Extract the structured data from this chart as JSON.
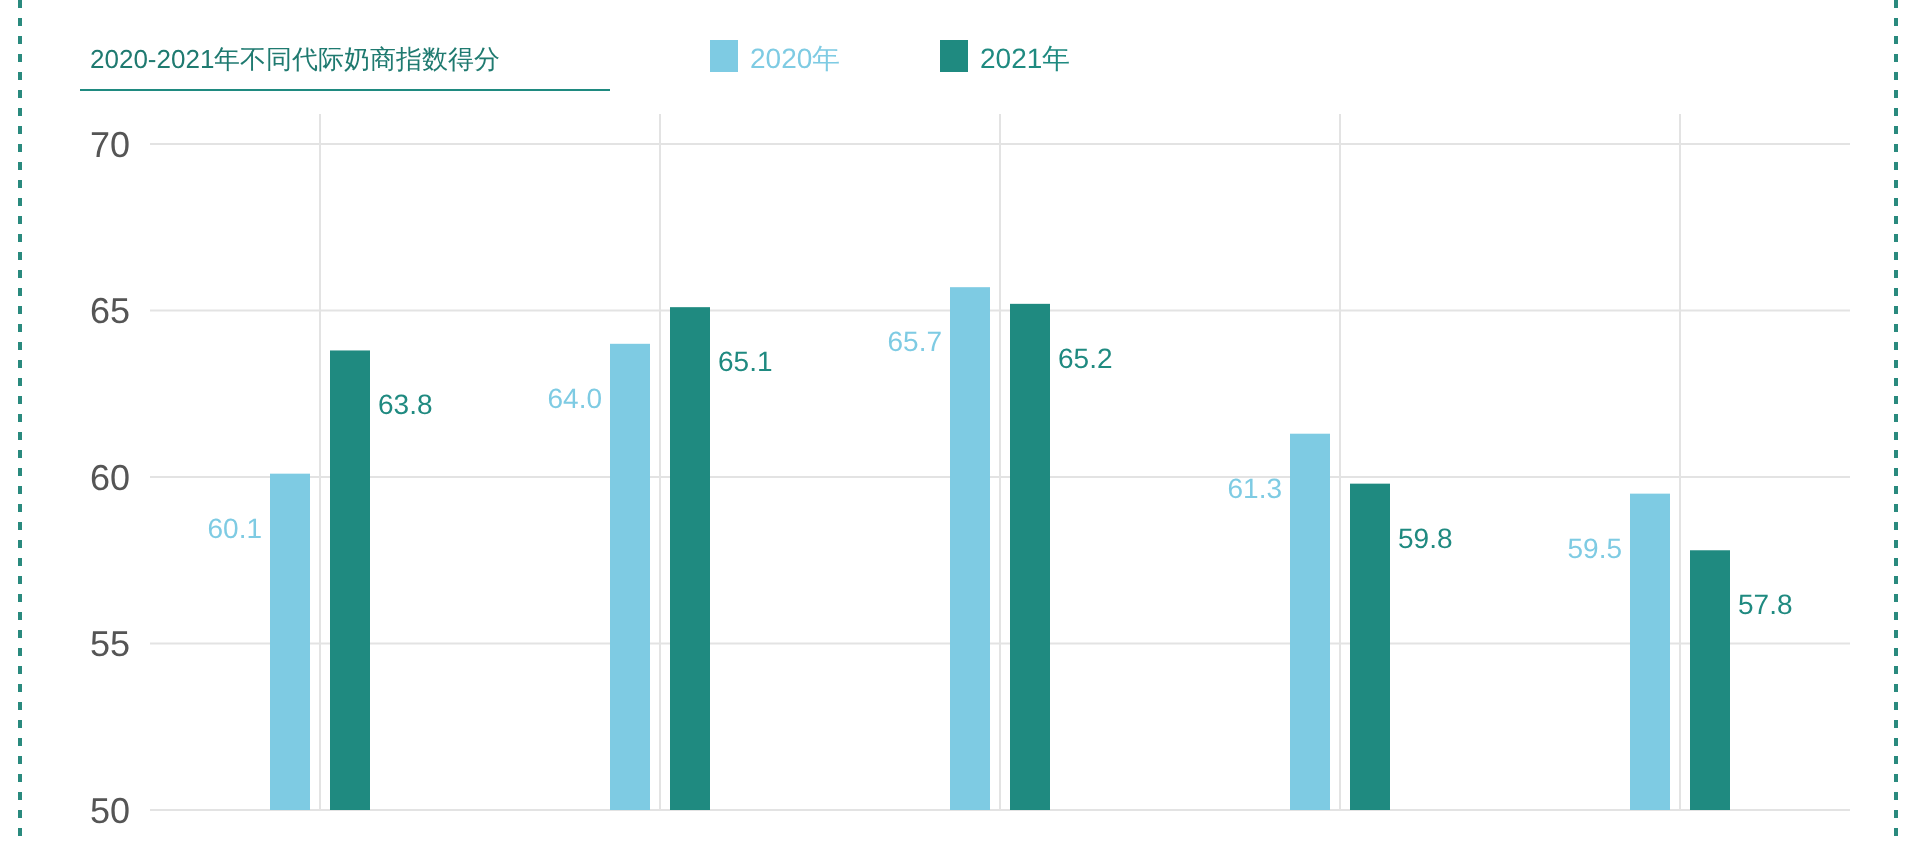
{
  "chart_data": {
    "type": "bar",
    "title": "2020-2021年不同代际奶商指数得分",
    "categories": [
      null,
      null,
      null,
      null,
      null
    ],
    "series": [
      {
        "name": "2020年",
        "color": "#7ecbe3",
        "values": [
          60.1,
          64.0,
          65.7,
          61.3,
          59.5
        ]
      },
      {
        "name": "2021年",
        "color": "#1f8a80",
        "values": [
          63.8,
          65.1,
          65.2,
          59.8,
          57.8
        ]
      }
    ],
    "value_labels": [
      [
        "60.1",
        "64.0",
        "65.7",
        "61.3",
        "59.5"
      ],
      [
        "63.8",
        "65.1",
        "65.2",
        "59.8",
        "57.8"
      ]
    ],
    "ylim": [
      50,
      70
    ],
    "yticks": [
      50,
      55,
      60,
      65,
      70
    ],
    "grid": true,
    "legend": "top"
  }
}
